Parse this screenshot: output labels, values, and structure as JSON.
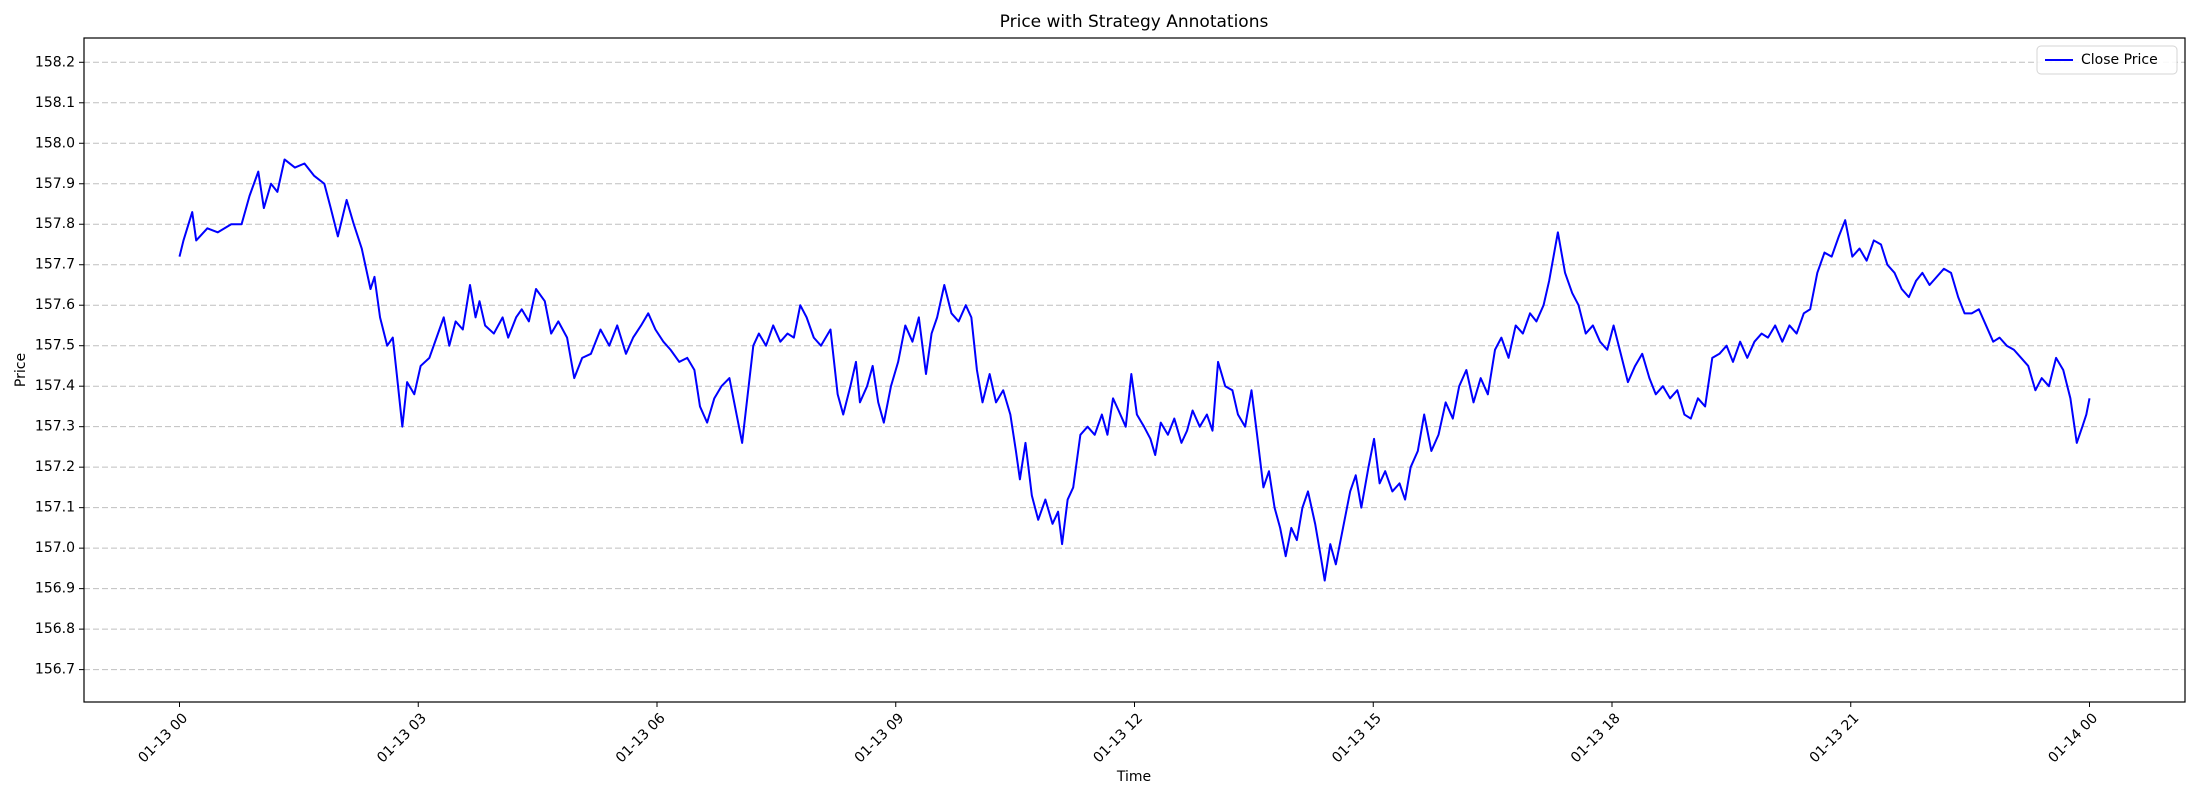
{
  "chart_data": {
    "type": "line",
    "title": "Price with Strategy Annotations",
    "x_label": "Time",
    "y_label": "Price",
    "legend": "upper right",
    "grid": "y",
    "xlim": [
      -1.2,
      25.2
    ],
    "ylim": [
      156.62,
      158.26
    ],
    "xticks": [
      {
        "value": 0,
        "label": "01-13 00"
      },
      {
        "value": 3,
        "label": "01-13 03"
      },
      {
        "value": 6,
        "label": "01-13 06"
      },
      {
        "value": 9,
        "label": "01-13 09"
      },
      {
        "value": 12,
        "label": "01-13 12"
      },
      {
        "value": 15,
        "label": "01-13 15"
      },
      {
        "value": 18,
        "label": "01-13 18"
      },
      {
        "value": 21,
        "label": "01-13 21"
      },
      {
        "value": 24,
        "label": "01-14 00"
      }
    ],
    "yticks": [
      156.7,
      156.8,
      156.9,
      {
        "value": 157,
        "label": "157.0"
      },
      157.1,
      157.2,
      157.3,
      157.4,
      157.5,
      157.6,
      157.7,
      157.8,
      157.9,
      {
        "value": 158,
        "label": "158.0"
      },
      158.1,
      158.2
    ],
    "x": [
      0,
      0.05,
      0.16,
      0.21,
      0.35,
      0.48,
      0.65,
      0.78,
      0.88,
      0.99,
      1.06,
      1.15,
      1.23,
      1.32,
      1.45,
      1.57,
      1.69,
      1.82,
      1.9,
      1.99,
      2.1,
      2.19,
      2.29,
      2.4,
      2.45,
      2.52,
      2.61,
      2.68,
      2.73,
      2.8,
      2.86,
      2.95,
      3.03,
      3.14,
      3.23,
      3.32,
      3.39,
      3.47,
      3.56,
      3.65,
      3.72,
      3.77,
      3.84,
      3.95,
      4.06,
      4.13,
      4.23,
      4.3,
      4.39,
      4.48,
      4.59,
      4.67,
      4.76,
      4.87,
      4.96,
      5.06,
      5.17,
      5.29,
      5.4,
      5.5,
      5.61,
      5.7,
      5.8,
      5.89,
      5.98,
      6.08,
      6.17,
      6.28,
      6.38,
      6.47,
      6.54,
      6.63,
      6.72,
      6.81,
      6.91,
      6.98,
      7.07,
      7.14,
      7.21,
      7.28,
      7.37,
      7.46,
      7.55,
      7.64,
      7.72,
      7.8,
      7.88,
      7.97,
      8.06,
      8.18,
      8.27,
      8.34,
      8.43,
      8.5,
      8.55,
      8.64,
      8.71,
      8.78,
      8.85,
      8.94,
      9.03,
      9.12,
      9.21,
      9.29,
      9.38,
      9.45,
      9.52,
      9.61,
      9.7,
      9.79,
      9.88,
      9.95,
      10.02,
      10.09,
      10.18,
      10.26,
      10.35,
      10.44,
      10.51,
      10.56,
      10.63,
      10.71,
      10.79,
      10.88,
      10.97,
      11.04,
      11.09,
      11.16,
      11.23,
      11.32,
      11.41,
      11.5,
      11.59,
      11.66,
      11.73,
      11.8,
      11.89,
      11.96,
      12.03,
      12.12,
      12.2,
      12.26,
      12.33,
      12.42,
      12.5,
      12.59,
      12.66,
      12.73,
      12.82,
      12.91,
      12.98,
      13.05,
      13.14,
      13.23,
      13.3,
      13.39,
      13.47,
      13.54,
      13.62,
      13.69,
      13.76,
      13.83,
      13.9,
      13.97,
      14.04,
      14.11,
      14.18,
      14.27,
      14.34,
      14.39,
      14.46,
      14.53,
      14.62,
      14.71,
      14.78,
      14.85,
      14.94,
      15.01,
      15.08,
      15.15,
      15.24,
      15.33,
      15.4,
      15.47,
      15.56,
      15.64,
      15.73,
      15.82,
      15.91,
      16.0,
      16.08,
      16.17,
      16.26,
      16.35,
      16.44,
      16.53,
      16.61,
      16.7,
      16.79,
      16.88,
      16.97,
      17.05,
      17.14,
      17.21,
      17.32,
      17.41,
      17.5,
      17.58,
      17.67,
      17.76,
      17.85,
      17.94,
      18.02,
      18.11,
      18.2,
      18.29,
      18.38,
      18.47,
      18.55,
      18.64,
      18.73,
      18.82,
      18.91,
      18.99,
      19.08,
      19.17,
      19.26,
      19.35,
      19.44,
      19.52,
      19.61,
      19.7,
      19.79,
      19.88,
      19.96,
      20.05,
      20.14,
      20.23,
      20.32,
      20.41,
      20.49,
      20.58,
      20.67,
      20.76,
      20.85,
      20.93,
      21.02,
      21.11,
      21.2,
      21.29,
      21.38,
      21.46,
      21.55,
      21.64,
      21.73,
      21.82,
      21.9,
      21.99,
      22.08,
      22.17,
      22.26,
      22.35,
      22.43,
      22.52,
      22.61,
      22.7,
      22.79,
      22.87,
      22.96,
      23.05,
      23.14,
      23.23,
      23.32,
      23.4,
      23.49,
      23.58,
      23.67,
      23.76,
      23.84,
      23.91,
      23.96,
      24.0
    ],
    "series": [
      {
        "name": "Close Price",
        "color": "#0000ff",
        "values": [
          157.72,
          157.76,
          157.83,
          157.76,
          157.79,
          157.78,
          157.8,
          157.8,
          157.87,
          157.93,
          157.84,
          157.9,
          157.88,
          157.96,
          157.94,
          157.95,
          157.92,
          157.9,
          157.84,
          157.77,
          157.86,
          157.8,
          157.74,
          157.64,
          157.67,
          157.57,
          157.5,
          157.52,
          157.43,
          157.3,
          157.41,
          157.38,
          157.45,
          157.47,
          157.52,
          157.57,
          157.5,
          157.56,
          157.54,
          157.65,
          157.57,
          157.61,
          157.55,
          157.53,
          157.57,
          157.52,
          157.57,
          157.59,
          157.56,
          157.64,
          157.61,
          157.53,
          157.56,
          157.52,
          157.42,
          157.47,
          157.48,
          157.54,
          157.5,
          157.55,
          157.48,
          157.52,
          157.55,
          157.58,
          157.54,
          157.51,
          157.49,
          157.46,
          157.47,
          157.44,
          157.35,
          157.31,
          157.37,
          157.4,
          157.42,
          157.35,
          157.26,
          157.38,
          157.5,
          157.53,
          157.5,
          157.55,
          157.51,
          157.53,
          157.52,
          157.6,
          157.57,
          157.52,
          157.5,
          157.54,
          157.38,
          157.33,
          157.4,
          157.46,
          157.36,
          157.4,
          157.45,
          157.36,
          157.31,
          157.4,
          157.46,
          157.55,
          157.51,
          157.57,
          157.43,
          157.53,
          157.57,
          157.65,
          157.58,
          157.56,
          157.6,
          157.57,
          157.44,
          157.36,
          157.43,
          157.36,
          157.39,
          157.33,
          157.24,
          157.17,
          157.26,
          157.13,
          157.07,
          157.12,
          157.06,
          157.09,
          157.01,
          157.12,
          157.15,
          157.28,
          157.3,
          157.28,
          157.33,
          157.28,
          157.37,
          157.34,
          157.3,
          157.43,
          157.33,
          157.3,
          157.27,
          157.23,
          157.31,
          157.28,
          157.32,
          157.26,
          157.29,
          157.34,
          157.3,
          157.33,
          157.29,
          157.46,
          157.4,
          157.39,
          157.33,
          157.3,
          157.39,
          157.28,
          157.15,
          157.19,
          157.1,
          157.05,
          156.98,
          157.05,
          157.02,
          157.1,
          157.14,
          157.06,
          156.98,
          156.92,
          157.01,
          156.96,
          157.05,
          157.14,
          157.18,
          157.1,
          157.2,
          157.27,
          157.16,
          157.19,
          157.14,
          157.16,
          157.12,
          157.2,
          157.24,
          157.33,
          157.24,
          157.28,
          157.36,
          157.32,
          157.4,
          157.44,
          157.36,
          157.42,
          157.38,
          157.49,
          157.52,
          157.47,
          157.55,
          157.53,
          157.58,
          157.56,
          157.6,
          157.66,
          157.78,
          157.68,
          157.63,
          157.6,
          157.53,
          157.55,
          157.51,
          157.49,
          157.55,
          157.48,
          157.41,
          157.45,
          157.48,
          157.42,
          157.38,
          157.4,
          157.37,
          157.39,
          157.33,
          157.32,
          157.37,
          157.35,
          157.47,
          157.48,
          157.5,
          157.46,
          157.51,
          157.47,
          157.51,
          157.53,
          157.52,
          157.55,
          157.51,
          157.55,
          157.53,
          157.58,
          157.59,
          157.68,
          157.73,
          157.72,
          157.77,
          157.81,
          157.72,
          157.74,
          157.71,
          157.76,
          157.75,
          157.7,
          157.68,
          157.64,
          157.62,
          157.66,
          157.68,
          157.65,
          157.67,
          157.69,
          157.68,
          157.62,
          157.58,
          157.58,
          157.59,
          157.55,
          157.51,
          157.52,
          157.5,
          157.49,
          157.47,
          157.45,
          157.39,
          157.42,
          157.4,
          157.47,
          157.44,
          157.37,
          157.26,
          157.3,
          157.33,
          157.37
        ]
      }
    ]
  }
}
